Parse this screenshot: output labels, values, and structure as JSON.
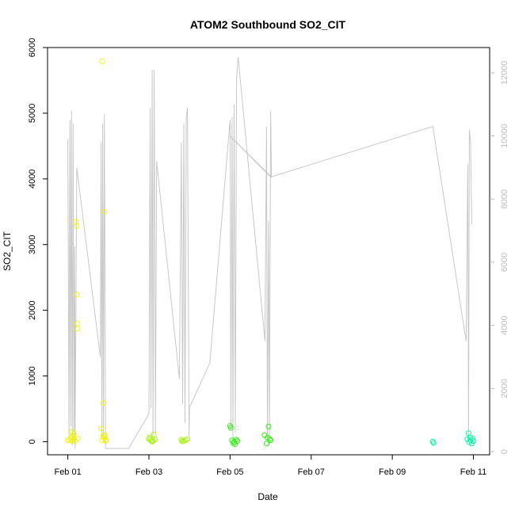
{
  "chart_data": {
    "type": "scatter",
    "title": "ATOM2 Southbound SO2_CIT",
    "xlabel": "Date",
    "ylabel": "SO2_CIT",
    "x_ticks": [
      "Feb 01",
      "Feb 03",
      "Feb 05",
      "Feb 07",
      "Feb 09",
      "Feb 11"
    ],
    "x_tick_days": [
      1,
      3,
      5,
      7,
      9,
      11
    ],
    "xlim_days": [
      0.5,
      11.4
    ],
    "ylim": [
      -200,
      6000
    ],
    "y_ticks": [
      0,
      1000,
      2000,
      3000,
      4000,
      5000,
      6000
    ],
    "y2lim": [
      -100,
      12800
    ],
    "y2_ticks": [
      0,
      2000,
      4000,
      6000,
      8000,
      10000,
      12000
    ],
    "grid": false,
    "legend": "none",
    "colors": {
      "line": "#c8c8c8",
      "right_axis": "#bdbdbd",
      "axis": "#000000"
    },
    "series": [
      {
        "type": "line",
        "axis": "right",
        "points": [
          [
            1.0,
            9900
          ],
          [
            1.03,
            500
          ],
          [
            1.05,
            10500
          ],
          [
            1.07,
            800
          ],
          [
            1.09,
            10800
          ],
          [
            1.11,
            200
          ],
          [
            1.13,
            10400
          ],
          [
            1.15,
            300
          ],
          [
            1.17,
            6500
          ],
          [
            1.18,
            80
          ],
          [
            1.22,
            9000
          ],
          [
            1.8,
            3000
          ],
          [
            1.82,
            9800
          ],
          [
            1.84,
            400
          ],
          [
            1.86,
            10400
          ],
          [
            1.88,
            300
          ],
          [
            1.9,
            10700
          ],
          [
            1.92,
            4300
          ],
          [
            1.93,
            100
          ],
          [
            2.5,
            100
          ],
          [
            3.0,
            1200
          ],
          [
            3.03,
            10900
          ],
          [
            3.05,
            1400
          ],
          [
            3.08,
            12100
          ],
          [
            3.1,
            500
          ],
          [
            3.13,
            12100
          ],
          [
            3.16,
            600
          ],
          [
            3.19,
            9200
          ],
          [
            3.75,
            2300
          ],
          [
            3.8,
            9800
          ],
          [
            3.83,
            1500
          ],
          [
            3.86,
            10400
          ],
          [
            3.89,
            900
          ],
          [
            3.92,
            10600
          ],
          [
            3.95,
            10900
          ],
          [
            3.99,
            500
          ],
          [
            4.0,
            1400
          ],
          [
            4.5,
            2800
          ],
          [
            5.0,
            10500
          ],
          [
            5.02,
            700
          ],
          [
            5.05,
            10600
          ],
          [
            5.07,
            400
          ],
          [
            5.1,
            11000
          ],
          [
            5.13,
            600
          ],
          [
            5.16,
            11800
          ],
          [
            5.2,
            12500
          ],
          [
            5.86,
            3500
          ],
          [
            5.9,
            10300
          ],
          [
            5.92,
            400
          ],
          [
            5.95,
            7300
          ],
          [
            5.97,
            200
          ],
          [
            6.0,
            10800
          ],
          [
            6.02,
            8700
          ],
          [
            5.0,
            10000
          ],
          [
            6.0,
            8700
          ],
          [
            10.0,
            10300
          ],
          [
            10.82,
            3500
          ],
          [
            10.86,
            9100
          ],
          [
            10.88,
            300
          ],
          [
            10.9,
            10200
          ],
          [
            10.93,
            9800
          ],
          [
            10.96,
            7200
          ]
        ]
      },
      {
        "type": "points",
        "axis": "left",
        "color": "#f2f20a",
        "points": [
          [
            1.05,
            30
          ],
          [
            1.08,
            60
          ],
          [
            1.1,
            10
          ],
          [
            1.12,
            80
          ],
          [
            1.15,
            40
          ],
          [
            1.18,
            5
          ],
          [
            1.2,
            3350
          ],
          [
            1.22,
            3280
          ],
          [
            1.22,
            2240
          ],
          [
            1.23,
            1800
          ],
          [
            1.24,
            1720
          ],
          [
            1.25,
            50
          ],
          [
            1.1,
            150
          ],
          [
            1.15,
            120
          ],
          [
            1.0,
            20
          ],
          [
            1.85,
            5790
          ],
          [
            1.9,
            3500
          ],
          [
            1.88,
            590
          ],
          [
            1.82,
            200
          ],
          [
            1.87,
            90
          ],
          [
            1.9,
            60
          ],
          [
            1.95,
            30
          ],
          [
            1.92,
            100
          ],
          [
            1.84,
            20
          ],
          [
            1.93,
            10
          ]
        ]
      },
      {
        "type": "points",
        "axis": "left",
        "color": "#a6f20a",
        "points": [
          [
            3.0,
            40
          ],
          [
            3.05,
            20
          ],
          [
            3.1,
            10
          ],
          [
            3.12,
            110
          ],
          [
            3.15,
            30
          ],
          [
            3.02,
            60
          ],
          [
            3.08,
            0
          ],
          [
            3.8,
            30
          ],
          [
            3.85,
            10
          ],
          [
            3.9,
            20
          ],
          [
            3.95,
            40
          ],
          [
            3.82,
            5
          ]
        ]
      },
      {
        "type": "points",
        "axis": "left",
        "color": "#2af20a",
        "points": [
          [
            5.0,
            240
          ],
          [
            5.02,
            210
          ],
          [
            5.05,
            20
          ],
          [
            5.08,
            -20
          ],
          [
            5.1,
            0
          ],
          [
            5.12,
            -40
          ],
          [
            5.15,
            30
          ],
          [
            5.18,
            10
          ],
          [
            5.85,
            100
          ],
          [
            5.9,
            -30
          ],
          [
            5.92,
            60
          ],
          [
            5.95,
            230
          ],
          [
            5.98,
            40
          ],
          [
            6.0,
            20
          ]
        ]
      },
      {
        "type": "points",
        "axis": "left",
        "color": "#0af2a6",
        "points": [
          [
            10.0,
            0
          ],
          [
            10.02,
            -20
          ],
          [
            10.85,
            40
          ],
          [
            10.88,
            130
          ],
          [
            10.9,
            -10
          ],
          [
            10.93,
            20
          ],
          [
            10.96,
            -30
          ],
          [
            10.98,
            50
          ],
          [
            11.0,
            10
          ],
          [
            10.92,
            60
          ]
        ]
      }
    ]
  }
}
